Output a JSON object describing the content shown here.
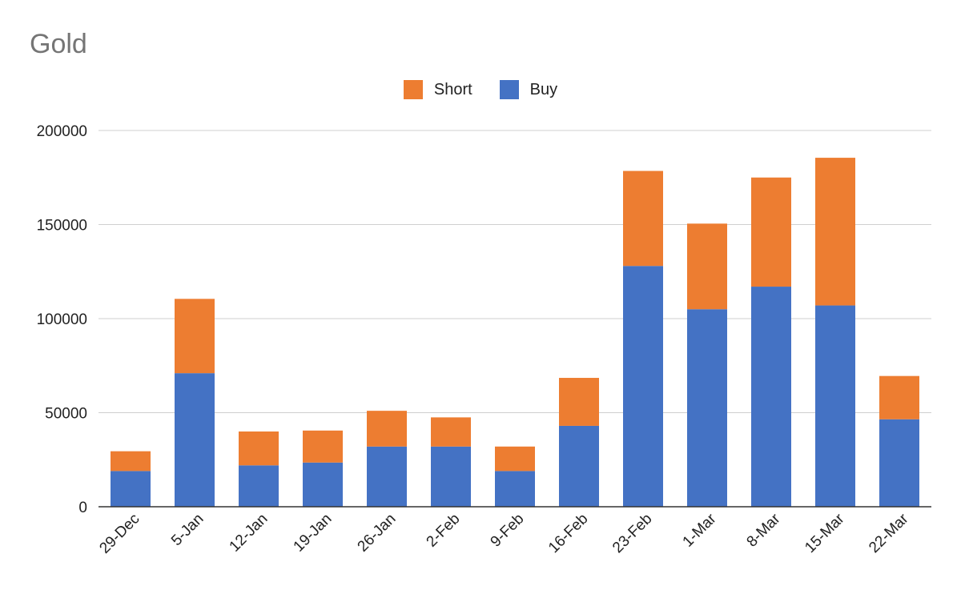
{
  "chart_data": {
    "type": "bar",
    "stacked": true,
    "title": "Gold",
    "categories": [
      "29-Dec",
      "5-Jan",
      "12-Jan",
      "19-Jan",
      "26-Jan",
      "2-Feb",
      "9-Feb",
      "16-Feb",
      "23-Feb",
      "1-Mar",
      "8-Mar",
      "15-Mar",
      "22-Mar"
    ],
    "series": [
      {
        "name": "Buy",
        "color": "#4472C4",
        "values": [
          19000,
          71000,
          22000,
          23500,
          32000,
          32000,
          19000,
          43000,
          128000,
          105000,
          117000,
          107000,
          46500
        ]
      },
      {
        "name": "Short",
        "color": "#ED7D31",
        "values": [
          10500,
          39500,
          18000,
          17000,
          19000,
          15500,
          13000,
          25500,
          50500,
          45500,
          58000,
          78500,
          23000
        ]
      }
    ],
    "legend_order": [
      "Short",
      "Buy"
    ],
    "legend_position": "top",
    "ylim": [
      0,
      200000
    ],
    "yticks": [
      0,
      50000,
      100000,
      150000,
      200000
    ],
    "grid": true,
    "xlabel": "",
    "ylabel": ""
  }
}
